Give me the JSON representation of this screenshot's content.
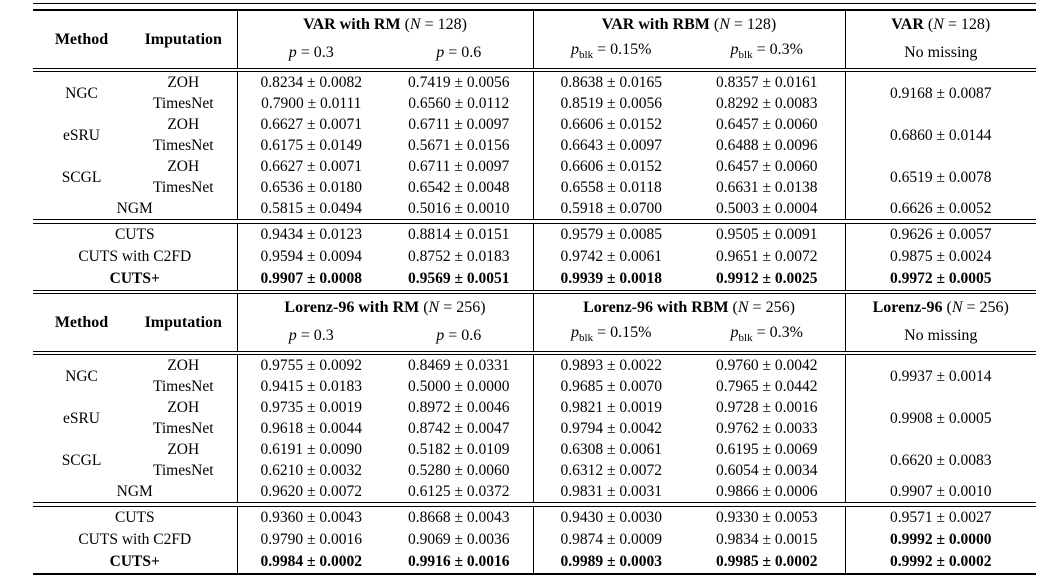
{
  "table": {
    "sections": [
      {
        "header": {
          "method": "Method",
          "imputation": "Imputation",
          "groups": [
            {
              "title": "VAR with RM",
              "param": "N",
              "value": "128",
              "cols": [
                {
                  "param": "p",
                  "subscript": "",
                  "value": "0.3"
                },
                {
                  "param": "p",
                  "subscript": "",
                  "value": "0.6"
                }
              ]
            },
            {
              "title": "VAR with RBM",
              "param": "N",
              "value": "128",
              "cols": [
                {
                  "param": "p",
                  "subscript": "blk",
                  "value": "0.15%"
                },
                {
                  "param": "p",
                  "subscript": "blk",
                  "value": "0.3%"
                }
              ]
            },
            {
              "title": "VAR",
              "param": "N",
              "value": "128",
              "single": "No missing"
            }
          ]
        },
        "body": [
          {
            "method": "NGC",
            "no_missing": "0.9168 ± 0.0087",
            "rows": [
              {
                "imputation": "ZOH",
                "vals": [
                  "0.8234 ± 0.0082",
                  "0.7419 ± 0.0056",
                  "0.8638 ± 0.0165",
                  "0.8357 ± 0.0161"
                ]
              },
              {
                "imputation": "TimesNet",
                "vals": [
                  "0.7900 ± 0.0111",
                  "0.6560 ± 0.0112",
                  "0.8519 ± 0.0056",
                  "0.8292 ± 0.0083"
                ]
              }
            ]
          },
          {
            "method": "eSRU",
            "no_missing": "0.6860 ± 0.0144",
            "rows": [
              {
                "imputation": "ZOH",
                "vals": [
                  "0.6627 ± 0.0071",
                  "0.6711 ± 0.0097",
                  "0.6606 ± 0.0152",
                  "0.6457 ± 0.0060"
                ]
              },
              {
                "imputation": "TimesNet",
                "vals": [
                  "0.6175 ± 0.0149",
                  "0.5671 ± 0.0156",
                  "0.6643 ± 0.0097",
                  "0.6488 ± 0.0096"
                ]
              }
            ]
          },
          {
            "method": "SCGL",
            "no_missing": "0.6519 ± 0.0078",
            "rows": [
              {
                "imputation": "ZOH",
                "vals": [
                  "0.6627 ± 0.0071",
                  "0.6711 ± 0.0097",
                  "0.6606 ± 0.0152",
                  "0.6457 ± 0.0060"
                ]
              },
              {
                "imputation": "TimesNet",
                "vals": [
                  "0.6536 ± 0.0180",
                  "0.6542 ± 0.0048",
                  "0.6558 ± 0.0118",
                  "0.6631 ± 0.0138"
                ]
              }
            ]
          },
          {
            "method": "NGM",
            "merged_label": true,
            "no_missing": "0.6626 ± 0.0052",
            "rows": [
              {
                "vals": [
                  "0.5815 ± 0.0494",
                  "0.5016 ± 0.0010",
                  "0.5918 ± 0.0700",
                  "0.5003 ± 0.0004"
                ]
              }
            ]
          }
        ],
        "cuts": [
          {
            "label": "CUTS",
            "bold": false,
            "bold_vals": [],
            "vals": [
              "0.9434 ± 0.0123",
              "0.8814 ± 0.0151",
              "0.9579 ± 0.0085",
              "0.9505 ± 0.0091",
              "0.9626 ± 0.0057"
            ]
          },
          {
            "label": "CUTS with C2FD",
            "bold": false,
            "bold_vals": [],
            "vals": [
              "0.9594 ± 0.0094",
              "0.8752 ± 0.0183",
              "0.9742 ± 0.0061",
              "0.9651 ± 0.0072",
              "0.9875 ± 0.0024"
            ]
          },
          {
            "label": "CUTS+",
            "bold": true,
            "bold_vals": [],
            "vals": [
              "0.9907 ± 0.0008",
              "0.9569 ± 0.0051",
              "0.9939 ± 0.0018",
              "0.9912 ± 0.0025",
              "0.9972 ± 0.0005"
            ]
          }
        ]
      },
      {
        "header": {
          "method": "Method",
          "imputation": "Imputation",
          "groups": [
            {
              "title": "Lorenz-96 with RM",
              "param": "N",
              "value": "256",
              "cols": [
                {
                  "param": "p",
                  "subscript": "",
                  "value": "0.3"
                },
                {
                  "param": "p",
                  "subscript": "",
                  "value": "0.6"
                }
              ]
            },
            {
              "title": "Lorenz-96 with RBM",
              "param": "N",
              "value": "256",
              "cols": [
                {
                  "param": "p",
                  "subscript": "blk",
                  "value": "0.15%"
                },
                {
                  "param": "p",
                  "subscript": "blk",
                  "value": "0.3%"
                }
              ]
            },
            {
              "title": "Lorenz-96",
              "param": "N",
              "value": "256",
              "single": "No missing"
            }
          ]
        },
        "body": [
          {
            "method": "NGC",
            "no_missing": "0.9937 ± 0.0014",
            "rows": [
              {
                "imputation": "ZOH",
                "vals": [
                  "0.9755 ± 0.0092",
                  "0.8469 ± 0.0331",
                  "0.9893 ± 0.0022",
                  "0.9760 ± 0.0042"
                ]
              },
              {
                "imputation": "TimesNet",
                "vals": [
                  "0.9415 ± 0.0183",
                  "0.5000 ± 0.0000",
                  "0.9685 ± 0.0070",
                  "0.7965 ± 0.0442"
                ]
              }
            ]
          },
          {
            "method": "eSRU",
            "no_missing": "0.9908 ± 0.0005",
            "rows": [
              {
                "imputation": "ZOH",
                "vals": [
                  "0.9735 ± 0.0019",
                  "0.8972 ± 0.0046",
                  "0.9821 ± 0.0019",
                  "0.9728 ± 0.0016"
                ]
              },
              {
                "imputation": "TimesNet",
                "vals": [
                  "0.9618 ± 0.0044",
                  "0.8742 ± 0.0047",
                  "0.9794 ± 0.0042",
                  "0.9762 ± 0.0033"
                ]
              }
            ]
          },
          {
            "method": "SCGL",
            "no_missing": "0.6620 ± 0.0083",
            "rows": [
              {
                "imputation": "ZOH",
                "vals": [
                  "0.6191 ± 0.0090",
                  "0.5182 ± 0.0109",
                  "0.6308 ± 0.0061",
                  "0.6195 ± 0.0069"
                ]
              },
              {
                "imputation": "TimesNet",
                "vals": [
                  "0.6210 ± 0.0032",
                  "0.5280 ± 0.0060",
                  "0.6312 ± 0.0072",
                  "0.6054 ± 0.0034"
                ]
              }
            ]
          },
          {
            "method": "NGM",
            "merged_label": true,
            "no_missing": "0.9907 ± 0.0010",
            "rows": [
              {
                "vals": [
                  "0.9620 ± 0.0072",
                  "0.6125 ± 0.0372",
                  "0.9831 ± 0.0031",
                  "0.9866 ± 0.0006"
                ]
              }
            ]
          }
        ],
        "cuts": [
          {
            "label": "CUTS",
            "bold": false,
            "bold_vals": [],
            "vals": [
              "0.9360 ± 0.0043",
              "0.8668 ± 0.0043",
              "0.9430 ± 0.0030",
              "0.9330 ± 0.0053",
              "0.9571 ± 0.0027"
            ]
          },
          {
            "label": "CUTS with C2FD",
            "bold": false,
            "bold_vals": [
              4
            ],
            "vals": [
              "0.9790 ± 0.0016",
              "0.9069 ± 0.0036",
              "0.9874 ± 0.0009",
              "0.9834 ± 0.0015",
              "0.9992 ± 0.0000"
            ]
          },
          {
            "label": "CUTS+",
            "bold": true,
            "bold_vals": [],
            "vals": [
              "0.9984 ± 0.0002",
              "0.9916 ± 0.0016",
              "0.9989 ± 0.0003",
              "0.9985 ± 0.0002",
              "0.9992 ± 0.0002"
            ]
          }
        ]
      }
    ]
  }
}
